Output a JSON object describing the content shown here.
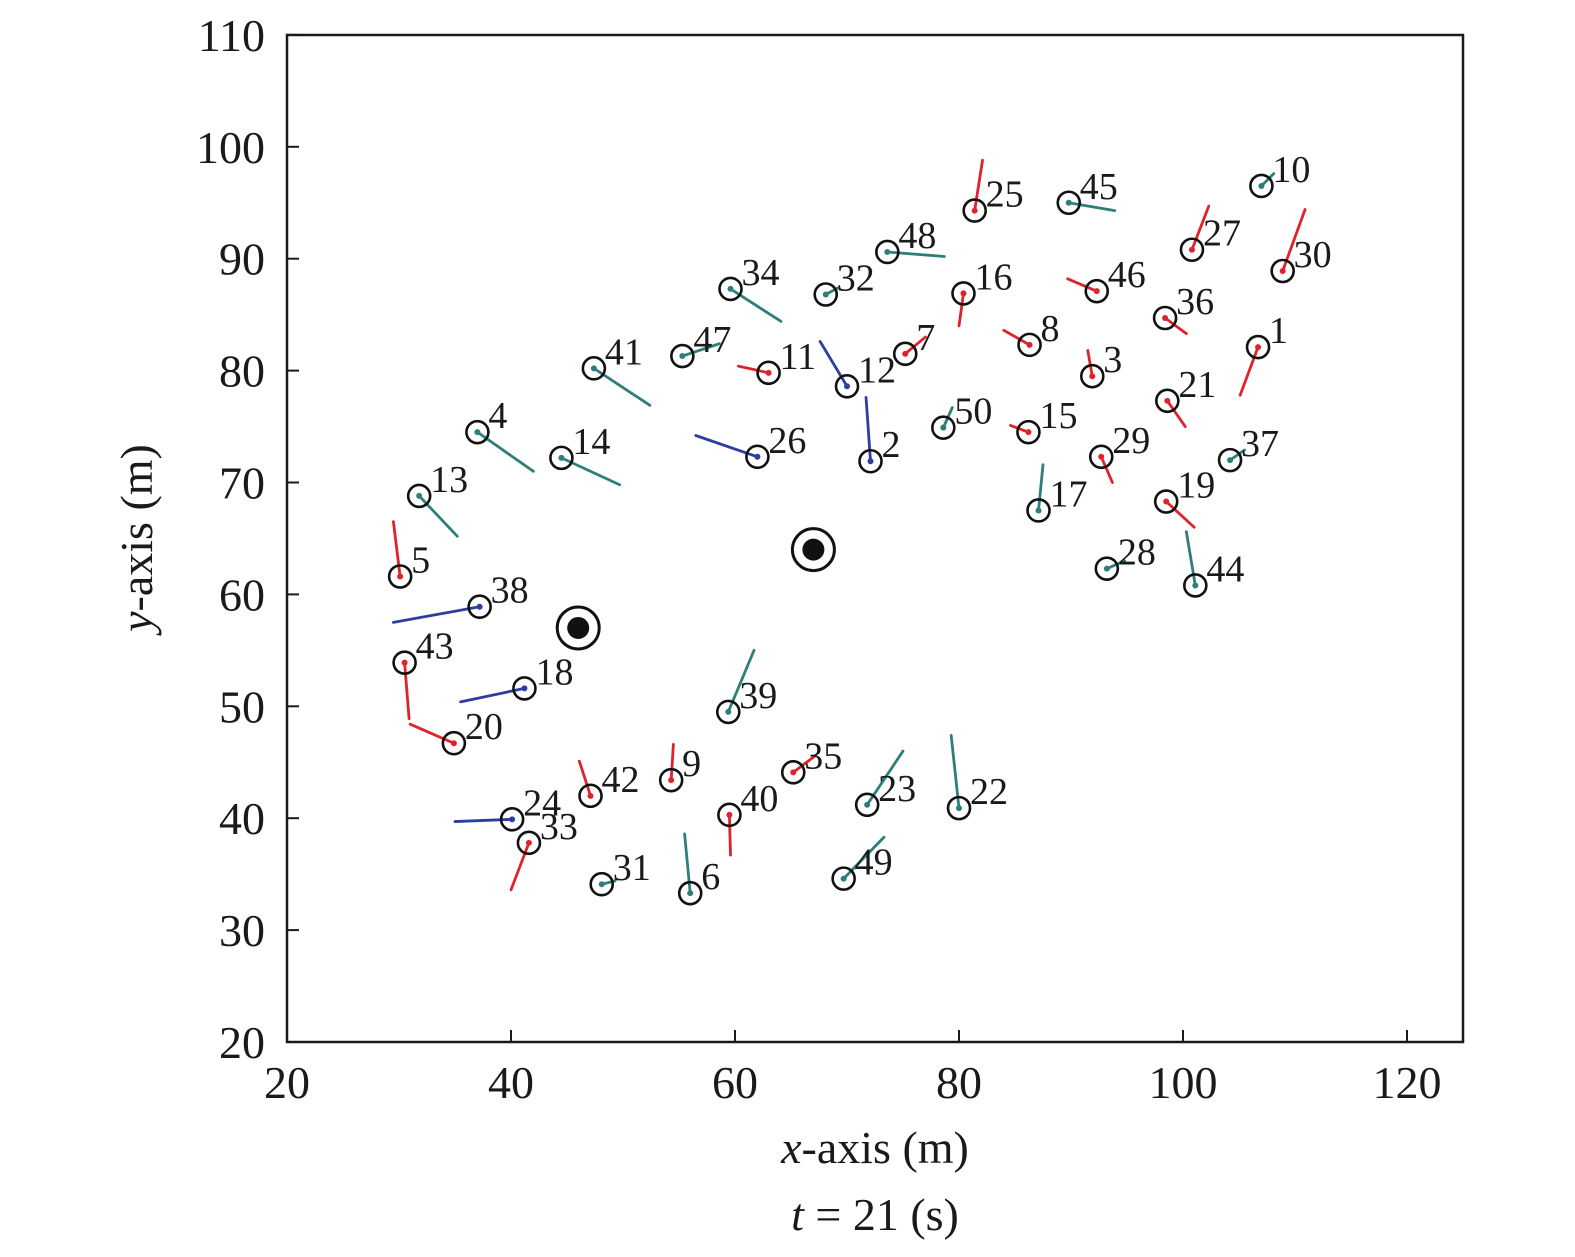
{
  "chart_data": {
    "type": "scatter",
    "xlabel_var": "x",
    "xlabel_rest": "-axis (m)",
    "ylabel_var": "y",
    "ylabel_rest": "-axis (m)",
    "caption_var": "t",
    "caption_rest": " = 21 (s)",
    "xlim": [
      25,
      125
    ],
    "ylim": [
      20,
      110
    ],
    "xticks": [
      20,
      40,
      60,
      80,
      100,
      120
    ],
    "yticks": [
      20,
      30,
      40,
      50,
      60,
      70,
      80,
      90,
      100,
      110
    ],
    "grid": false,
    "colors": {
      "red": "#e0222a",
      "teal": "#2e7f7a",
      "blue": "#2c3fa0",
      "circle": "#111111",
      "obstacle": "#111111"
    },
    "obstacles": [
      {
        "x": 67.0,
        "y": 64.0
      },
      {
        "x": 46.0,
        "y": 57.0
      }
    ],
    "agents": [
      {
        "id": "1",
        "x": 106.7,
        "y": 82.1,
        "hx": 105.1,
        "hy": 77.8,
        "color": "red"
      },
      {
        "id": "2",
        "x": 72.1,
        "y": 71.9,
        "hx": 71.7,
        "hy": 77.6,
        "color": "blue"
      },
      {
        "id": "3",
        "x": 91.9,
        "y": 79.5,
        "hx": 91.5,
        "hy": 81.8,
        "color": "red"
      },
      {
        "id": "4",
        "x": 37.0,
        "y": 74.5,
        "hx": 42.0,
        "hy": 71.0,
        "color": "teal"
      },
      {
        "id": "5",
        "x": 30.1,
        "y": 61.6,
        "hx": 29.5,
        "hy": 66.5,
        "color": "red"
      },
      {
        "id": "6",
        "x": 56.0,
        "y": 33.3,
        "hx": 55.5,
        "hy": 38.6,
        "color": "teal"
      },
      {
        "id": "7",
        "x": 75.2,
        "y": 81.5,
        "hx": 77.0,
        "hy": 83.0,
        "color": "red"
      },
      {
        "id": "8",
        "x": 86.3,
        "y": 82.3,
        "hx": 84.0,
        "hy": 83.6,
        "color": "red"
      },
      {
        "id": "9",
        "x": 54.3,
        "y": 43.4,
        "hx": 54.5,
        "hy": 46.6,
        "color": "red"
      },
      {
        "id": "10",
        "x": 107.0,
        "y": 96.5,
        "hx": 108.1,
        "hy": 97.6,
        "color": "teal"
      },
      {
        "id": "11",
        "x": 63.0,
        "y": 79.8,
        "hx": 60.3,
        "hy": 80.4,
        "color": "red"
      },
      {
        "id": "12",
        "x": 70.0,
        "y": 78.6,
        "hx": 67.6,
        "hy": 82.6,
        "color": "blue"
      },
      {
        "id": "13",
        "x": 31.8,
        "y": 68.8,
        "hx": 35.2,
        "hy": 65.2,
        "color": "teal"
      },
      {
        "id": "14",
        "x": 44.5,
        "y": 72.2,
        "hx": 49.7,
        "hy": 69.8,
        "color": "teal"
      },
      {
        "id": "15",
        "x": 86.2,
        "y": 74.5,
        "hx": 84.6,
        "hy": 75.1,
        "color": "red"
      },
      {
        "id": "16",
        "x": 80.4,
        "y": 86.9,
        "hx": 80.0,
        "hy": 84.0,
        "color": "red"
      },
      {
        "id": "17",
        "x": 87.1,
        "y": 67.5,
        "hx": 87.5,
        "hy": 71.6,
        "color": "teal"
      },
      {
        "id": "18",
        "x": 41.2,
        "y": 51.6,
        "hx": 35.5,
        "hy": 50.4,
        "color": "blue"
      },
      {
        "id": "19",
        "x": 98.5,
        "y": 68.3,
        "hx": 101.0,
        "hy": 66.0,
        "color": "red"
      },
      {
        "id": "20",
        "x": 34.9,
        "y": 46.7,
        "hx": 31.0,
        "hy": 48.4,
        "color": "red"
      },
      {
        "id": "21",
        "x": 98.6,
        "y": 77.3,
        "hx": 100.2,
        "hy": 75.0,
        "color": "red"
      },
      {
        "id": "22",
        "x": 80.0,
        "y": 40.9,
        "hx": 79.3,
        "hy": 47.4,
        "color": "teal"
      },
      {
        "id": "23",
        "x": 71.8,
        "y": 41.2,
        "hx": 75.0,
        "hy": 46.0,
        "color": "teal"
      },
      {
        "id": "24",
        "x": 40.1,
        "y": 39.9,
        "hx": 35.0,
        "hy": 39.7,
        "color": "blue"
      },
      {
        "id": "25",
        "x": 81.4,
        "y": 94.3,
        "hx": 82.1,
        "hy": 98.8,
        "color": "red"
      },
      {
        "id": "26",
        "x": 62.0,
        "y": 72.3,
        "hx": 56.5,
        "hy": 74.2,
        "color": "blue"
      },
      {
        "id": "27",
        "x": 100.8,
        "y": 90.8,
        "hx": 102.3,
        "hy": 94.7,
        "color": "red"
      },
      {
        "id": "28",
        "x": 93.2,
        "y": 62.3,
        "hx": 94.8,
        "hy": 63.0,
        "color": "teal"
      },
      {
        "id": "29",
        "x": 92.7,
        "y": 72.3,
        "hx": 93.7,
        "hy": 70.0,
        "color": "red"
      },
      {
        "id": "30",
        "x": 108.9,
        "y": 88.9,
        "hx": 110.9,
        "hy": 94.4,
        "color": "red"
      },
      {
        "id": "31",
        "x": 48.1,
        "y": 34.1,
        "hx": 49.3,
        "hy": 34.4,
        "color": "teal"
      },
      {
        "id": "32",
        "x": 68.1,
        "y": 86.8,
        "hx": 69.2,
        "hy": 87.4,
        "color": "teal"
      },
      {
        "id": "33",
        "x": 41.6,
        "y": 37.8,
        "hx": 40.0,
        "hy": 33.6,
        "color": "red"
      },
      {
        "id": "34",
        "x": 59.6,
        "y": 87.3,
        "hx": 64.1,
        "hy": 84.4,
        "color": "teal"
      },
      {
        "id": "35",
        "x": 65.2,
        "y": 44.1,
        "hx": 67.2,
        "hy": 45.6,
        "color": "red"
      },
      {
        "id": "36",
        "x": 98.4,
        "y": 84.7,
        "hx": 100.3,
        "hy": 83.3,
        "color": "red"
      },
      {
        "id": "37",
        "x": 104.2,
        "y": 72.0,
        "hx": 105.5,
        "hy": 72.9,
        "color": "teal"
      },
      {
        "id": "38",
        "x": 37.2,
        "y": 58.9,
        "hx": 29.5,
        "hy": 57.5,
        "color": "blue"
      },
      {
        "id": "39",
        "x": 59.4,
        "y": 49.5,
        "hx": 61.7,
        "hy": 55.0,
        "color": "teal"
      },
      {
        "id": "40",
        "x": 59.5,
        "y": 40.3,
        "hx": 59.6,
        "hy": 36.7,
        "color": "red"
      },
      {
        "id": "41",
        "x": 47.4,
        "y": 80.2,
        "hx": 52.4,
        "hy": 76.9,
        "color": "teal"
      },
      {
        "id": "42",
        "x": 47.1,
        "y": 42.0,
        "hx": 46.1,
        "hy": 45.1,
        "color": "red"
      },
      {
        "id": "43",
        "x": 30.5,
        "y": 53.9,
        "hx": 30.9,
        "hy": 48.9,
        "color": "red"
      },
      {
        "id": "44",
        "x": 101.1,
        "y": 60.8,
        "hx": 100.3,
        "hy": 65.6,
        "color": "teal"
      },
      {
        "id": "45",
        "x": 89.8,
        "y": 95.0,
        "hx": 93.9,
        "hy": 94.3,
        "color": "teal"
      },
      {
        "id": "46",
        "x": 92.3,
        "y": 87.1,
        "hx": 89.7,
        "hy": 88.2,
        "color": "red"
      },
      {
        "id": "47",
        "x": 55.3,
        "y": 81.3,
        "hx": 58.6,
        "hy": 82.4,
        "color": "teal"
      },
      {
        "id": "48",
        "x": 73.6,
        "y": 90.6,
        "hx": 78.7,
        "hy": 90.2,
        "color": "teal"
      },
      {
        "id": "49",
        "x": 69.7,
        "y": 34.6,
        "hx": 73.3,
        "hy": 38.3,
        "color": "teal"
      },
      {
        "id": "50",
        "x": 78.6,
        "y": 74.9,
        "hx": 79.4,
        "hy": 76.7,
        "color": "teal"
      }
    ]
  }
}
